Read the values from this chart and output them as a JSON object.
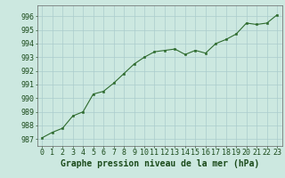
{
  "x": [
    0,
    1,
    2,
    3,
    4,
    5,
    6,
    7,
    8,
    9,
    10,
    11,
    12,
    13,
    14,
    15,
    16,
    17,
    18,
    19,
    20,
    21,
    22,
    23
  ],
  "y": [
    987.1,
    987.5,
    987.8,
    988.7,
    989.0,
    990.3,
    990.5,
    991.1,
    991.8,
    992.5,
    993.0,
    993.4,
    993.5,
    993.6,
    993.2,
    993.5,
    993.3,
    994.0,
    994.3,
    994.7,
    995.5,
    995.4,
    995.5,
    996.1
  ],
  "line_color": "#2d6a2d",
  "marker_color": "#2d6a2d",
  "bg_color": "#cce8e0",
  "grid_color": "#aacccc",
  "xlabel": "Graphe pression niveau de la mer (hPa)",
  "xlabel_color": "#1a4a1a",
  "xlabel_fontsize": 7,
  "tick_color": "#1a4a1a",
  "tick_fontsize": 6,
  "ylim_min": 986.5,
  "ylim_max": 996.8,
  "xlim_min": -0.5,
  "xlim_max": 23.5,
  "yticks": [
    987,
    988,
    989,
    990,
    991,
    992,
    993,
    994,
    995,
    996
  ],
  "xticks": [
    0,
    1,
    2,
    3,
    4,
    5,
    6,
    7,
    8,
    9,
    10,
    11,
    12,
    13,
    14,
    15,
    16,
    17,
    18,
    19,
    20,
    21,
    22,
    23
  ]
}
